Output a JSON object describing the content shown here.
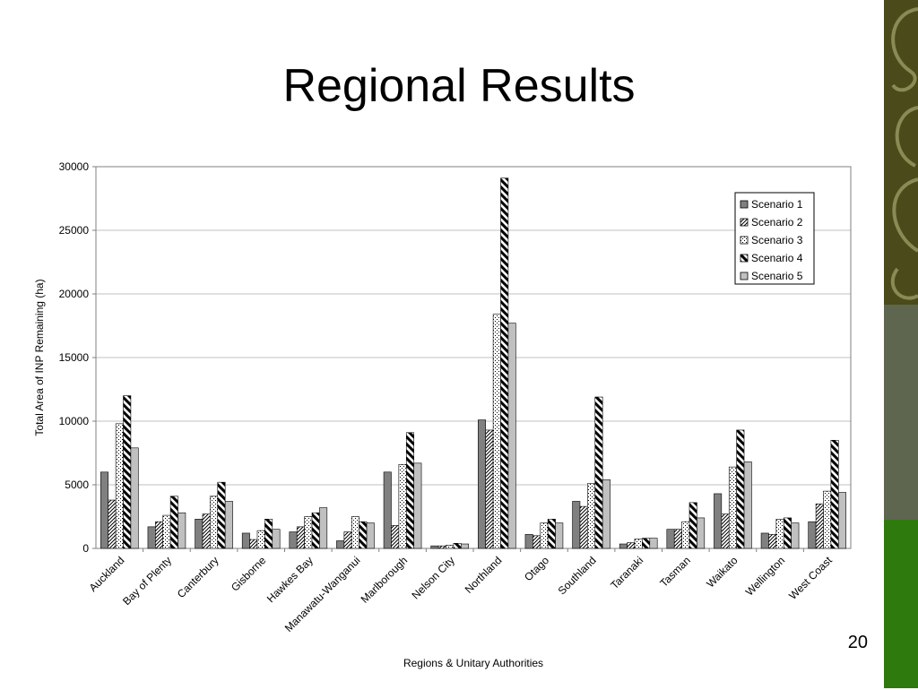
{
  "slide": {
    "title": "Regional Results",
    "page_number": "20"
  },
  "chart_data": {
    "type": "bar",
    "xlabel": "Regions & Unitary Authorities",
    "ylabel": "Total Area of INP Remaining (ha)",
    "ylim": [
      0,
      30000
    ],
    "yticks": [
      "0",
      "5000",
      "10000",
      "15000",
      "20000",
      "25000",
      "30000"
    ],
    "grid": true,
    "legend_position": "top-right",
    "categories": [
      "Auckland",
      "Bay of Plenty",
      "Canterbury",
      "Gisborne",
      "Hawkes Bay",
      "Manawatu-Wanganui",
      "Marlborough",
      "Nelson City",
      "Northland",
      "Otago",
      "Southland",
      "Taranaki",
      "Tasman",
      "Waikato",
      "Wellington",
      "West Coast"
    ],
    "series": [
      {
        "name": "Scenario 1",
        "values": [
          6000,
          1700,
          2300,
          1200,
          1300,
          600,
          6000,
          200,
          10100,
          1100,
          3700,
          350,
          1500,
          4300,
          1200,
          2100
        ]
      },
      {
        "name": "Scenario 2",
        "values": [
          3800,
          2100,
          2700,
          700,
          1700,
          1300,
          1800,
          200,
          9300,
          1000,
          3300,
          450,
          1500,
          2700,
          1100,
          3500
        ]
      },
      {
        "name": "Scenario 3",
        "values": [
          9800,
          2600,
          4100,
          1400,
          2500,
          2500,
          6600,
          250,
          18400,
          2000,
          5100,
          750,
          2100,
          6400,
          2300,
          4500
        ]
      },
      {
        "name": "Scenario 4",
        "values": [
          12000,
          4100,
          5200,
          2300,
          2800,
          2100,
          9100,
          400,
          29100,
          2300,
          11900,
          800,
          3600,
          9300,
          2400,
          8500
        ]
      },
      {
        "name": "Scenario 5",
        "values": [
          7900,
          2800,
          3700,
          1500,
          3200,
          2000,
          6700,
          350,
          17700,
          2000,
          5400,
          800,
          2400,
          6800,
          2000,
          4400
        ]
      }
    ]
  }
}
